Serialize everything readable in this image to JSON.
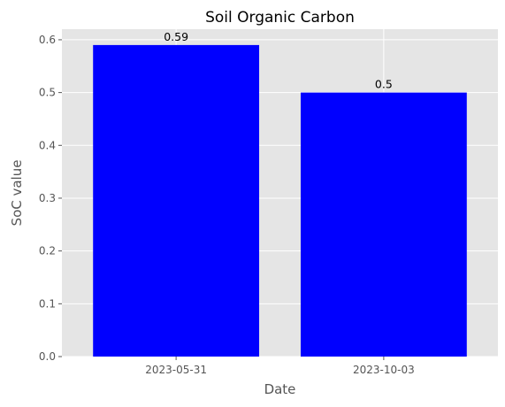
{
  "chart_data": {
    "type": "bar",
    "title": "Soil Organic Carbon",
    "xlabel": "Date",
    "ylabel": "SoC value",
    "categories": [
      "2023-05-31",
      "2023-10-03"
    ],
    "values": [
      0.59,
      0.5
    ],
    "data_labels": [
      "0.59",
      "0.5"
    ],
    "ylim": [
      0,
      0.62
    ],
    "yticks": [
      0.0,
      0.1,
      0.2,
      0.3,
      0.4,
      0.5,
      0.6
    ],
    "ytick_labels": [
      "0.0",
      "0.1",
      "0.2",
      "0.3",
      "0.4",
      "0.5",
      "0.6"
    ],
    "bar_color": "#0000ff",
    "plot_background": "#e5e5e5",
    "grid": true
  }
}
